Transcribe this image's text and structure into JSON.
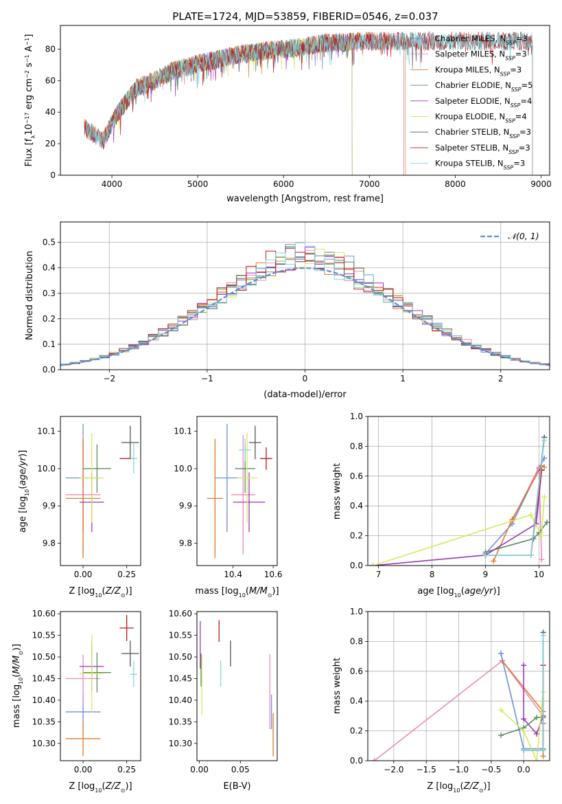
{
  "figure": {
    "title": "PLATE=1724, MJD=53859, FIBERID=0546, z=0.037"
  },
  "colors": {
    "Chabrier MILES": "#6a8fd8",
    "Salpeter MILES": "#e889bd",
    "Kroupa MILES": "#e07b28",
    "Chabrier ELODIE": "#5a8a5e",
    "Salpeter ELODIE": "#9a35b8",
    "Kroupa ELODIE": "#d7e85a",
    "Chabrier STELIB": "#555555",
    "Salpeter STELIB": "#c0151b",
    "Kroupa STELIB": "#7fd8df",
    "normal": "#5a8fd6"
  },
  "chart_data": [
    {
      "id": "spectrum",
      "type": "line",
      "title": "PLATE=1724, MJD=53859, FIBERID=0546, z=0.037",
      "xlabel": "wavelength [Angstrom, rest frame]",
      "ylabel": "Flux [f_λ 10^-17 erg cm^-2 s^-1 A^-1]",
      "xlim": [
        3400,
        9100
      ],
      "ylim": [
        0,
        95
      ],
      "xticks": [
        4000,
        5000,
        6000,
        7000,
        8000,
        9000
      ],
      "yticks": [
        0,
        20,
        40,
        60,
        80
      ],
      "grid": false,
      "legend_position": "right",
      "legend": [
        "Chabrier MILES, N_SSP=3",
        "Salpeter MILES, N_SSP=3",
        "Kroupa MILES, N_SSP=3",
        "Chabrier ELODIE, N_SSP=5",
        "Salpeter ELODIE, N_SSP=4",
        "Kroupa ELODIE, N_SSP=4",
        "Chabrier STELIB, N_SSP=3",
        "Salpeter STELIB, N_SSP=3",
        "Kroupa STELIB, N_SSP=3"
      ],
      "continuum": {
        "x": [
          3680,
          3900,
          4000,
          4100,
          4300,
          4500,
          4700,
          4900,
          5000,
          5200,
          5500,
          5800,
          6000,
          6300,
          6500,
          6700,
          6900,
          7100,
          7300,
          7400
        ],
        "y": [
          30,
          22,
          33,
          42,
          56,
          60,
          66,
          69,
          71,
          73,
          77,
          79,
          80,
          82,
          84,
          84,
          85,
          85,
          85,
          85
        ]
      },
      "model_ranges": [
        {
          "name": "Chabrier MILES",
          "x": [
            3680,
            7400
          ]
        },
        {
          "name": "Salpeter MILES",
          "x": [
            3680,
            7400
          ]
        },
        {
          "name": "Kroupa MILES",
          "x": [
            3680,
            7420
          ]
        },
        {
          "name": "Chabrier ELODIE",
          "x": [
            3900,
            6800
          ]
        },
        {
          "name": "Salpeter ELODIE",
          "x": [
            3900,
            6800
          ]
        },
        {
          "name": "Kroupa ELODIE",
          "x": [
            3900,
            6800
          ]
        },
        {
          "name": "Chabrier STELIB",
          "x": [
            3680,
            8900
          ]
        },
        {
          "name": "Salpeter STELIB",
          "x": [
            3680,
            8900
          ]
        },
        {
          "name": "Kroupa STELIB",
          "x": [
            3680,
            8900
          ]
        }
      ]
    },
    {
      "id": "residuals",
      "type": "histogram",
      "xlabel": "(data-model)/error",
      "ylabel": "Normed distribution",
      "xlim": [
        -2.5,
        2.5
      ],
      "ylim": [
        0,
        0.58
      ],
      "xticks": [
        -2,
        -1,
        0,
        1,
        2
      ],
      "yticks": [
        0,
        0.1,
        0.2,
        0.3,
        0.4,
        0.5
      ],
      "grid": true,
      "legend": "𝒩(0, 1)",
      "legend_position": "top-right",
      "bin_width": 0.1
    },
    {
      "id": "age_vs_Z",
      "type": "errorbar",
      "xlabel": "Z [log10(Z/Z☉)]",
      "ylabel": "age [log10(age/yr)]",
      "xlim": [
        -0.13,
        0.33
      ],
      "ylim": [
        9.74,
        10.14
      ],
      "xticks": [
        0.0,
        0.25
      ],
      "xticklabels": [
        "0.00",
        "0.25"
      ],
      "yticks": [
        9.8,
        9.9,
        10.0,
        10.1
      ],
      "grid": false,
      "points": [
        {
          "name": "Chabrier MILES",
          "x": 0.0,
          "xerr": 0.1,
          "y": 9.975,
          "yerr": 0.145
        },
        {
          "name": "Salpeter MILES",
          "x": 0.0,
          "xerr": 0.1,
          "y": 9.93,
          "yerr": 0.16
        },
        {
          "name": "Kroupa MILES",
          "x": 0.0,
          "xerr": 0.1,
          "y": 9.92,
          "yerr": 0.16
        },
        {
          "name": "Chabrier ELODIE",
          "x": 0.08,
          "xerr": 0.08,
          "y": 10.0,
          "yerr": 0.065
        },
        {
          "name": "Salpeter ELODIE",
          "x": 0.05,
          "xerr": 0.07,
          "y": 9.91,
          "yerr": 0.08
        },
        {
          "name": "Kroupa ELODIE",
          "x": 0.05,
          "xerr": 0.07,
          "y": 9.975,
          "yerr": 0.12
        },
        {
          "name": "Chabrier STELIB",
          "x": 0.27,
          "xerr": 0.05,
          "y": 10.07,
          "yerr": 0.045
        },
        {
          "name": "Salpeter STELIB",
          "x": 0.25,
          "xerr": 0.04,
          "y": 10.027,
          "yerr": 0.0
        },
        {
          "name": "Kroupa STELIB",
          "x": 0.29,
          "xerr": 0.02,
          "y": 10.027,
          "yerr": 0.04
        }
      ]
    },
    {
      "id": "age_vs_mass",
      "type": "errorbar",
      "xlabel": "mass [log10(M/M☉)]",
      "xlim": [
        10.22,
        10.62
      ],
      "ylim": [
        9.74,
        10.14
      ],
      "xticks": [
        10.4,
        10.6
      ],
      "xticklabels": [
        "10.4",
        "10.6"
      ],
      "yticks": [
        9.8,
        9.9,
        10.0,
        10.1
      ],
      "grid": false,
      "points": [
        {
          "name": "Chabrier MILES",
          "x": 10.37,
          "xerr": 0.06,
          "y": 9.975,
          "yerr": 0.145
        },
        {
          "name": "Salpeter MILES",
          "x": 10.45,
          "xerr": 0.06,
          "y": 9.93,
          "yerr": 0.16
        },
        {
          "name": "Kroupa MILES",
          "x": 10.31,
          "xerr": 0.04,
          "y": 9.92,
          "yerr": 0.16
        },
        {
          "name": "Chabrier ELODIE",
          "x": 10.46,
          "xerr": 0.05,
          "y": 10.0,
          "yerr": 0.065
        },
        {
          "name": "Salpeter ELODIE",
          "x": 10.48,
          "xerr": 0.08,
          "y": 9.91,
          "yerr": 0.08
        },
        {
          "name": "Kroupa ELODIE",
          "x": 10.47,
          "xerr": 0.05,
          "y": 9.975,
          "yerr": 0.12
        },
        {
          "name": "Chabrier STELIB",
          "x": 10.51,
          "xerr": 0.03,
          "y": 10.07,
          "yerr": 0.045
        },
        {
          "name": "Salpeter STELIB",
          "x": 10.565,
          "xerr": 0.03,
          "y": 10.027,
          "yerr": 0.03
        },
        {
          "name": "Kroupa STELIB",
          "x": 10.46,
          "xerr": 0.03,
          "y": 10.05,
          "yerr": 0.03
        }
      ]
    },
    {
      "id": "mass_weight_vs_age",
      "type": "line",
      "xlabel": "age [log10(age/yr)]",
      "ylabel": "mass weight",
      "xlim": [
        6.8,
        10.2
      ],
      "ylim": [
        0,
        1
      ],
      "xticks": [
        7,
        8,
        9,
        10
      ],
      "yticks": [
        0,
        0.2,
        0.4,
        0.6,
        0.8,
        1.0
      ],
      "grid": true,
      "series": [
        {
          "name": "Chabrier MILES",
          "x": [
            9.0,
            9.5,
            10.0,
            10.1
          ],
          "y": [
            0.08,
            0.28,
            0.65,
            0.72
          ]
        },
        {
          "name": "Salpeter MILES",
          "x": [
            9.5,
            10.0,
            10.05
          ],
          "y": [
            0.3,
            0.66,
            0.04
          ]
        },
        {
          "name": "Kroupa MILES",
          "x": [
            9.15,
            9.5,
            10.05,
            10.1
          ],
          "y": [
            0.03,
            0.31,
            0.67,
            0.66
          ]
        },
        {
          "name": "Chabrier ELODIE",
          "x": [
            9.0,
            9.9,
            10.0,
            10.15
          ],
          "y": [
            0.09,
            0.18,
            0.22,
            0.29
          ]
        },
        {
          "name": "Salpeter ELODIE",
          "x": [
            6.9,
            9.0,
            9.95,
            10.05
          ],
          "y": [
            0.0,
            0.07,
            0.28,
            0.64
          ]
        },
        {
          "name": "Kroupa ELODIE",
          "x": [
            6.9,
            9.85,
            10.05,
            10.1
          ],
          "y": [
            0.0,
            0.34,
            0.2,
            0.46
          ]
        },
        {
          "name": "Chabrier STELIB",
          "x": [
            9.0,
            9.85,
            10.1
          ],
          "y": [
            0.07,
            0.07,
            0.86
          ]
        },
        {
          "name": "Salpeter STELIB",
          "x": [
            9.0,
            9.85,
            10.05
          ],
          "y": [
            0.07,
            0.07,
            0.64
          ]
        },
        {
          "name": "Kroupa STELIB",
          "x": [
            9.0,
            9.85,
            10.1
          ],
          "y": [
            0.07,
            0.07,
            0.84
          ]
        }
      ]
    },
    {
      "id": "mass_vs_Z",
      "type": "errorbar",
      "xlabel": "Z [log10(Z/Z☉)]",
      "ylabel": "mass [log10(M/M☉)]",
      "xlim": [
        -0.13,
        0.33
      ],
      "ylim": [
        10.26,
        10.605
      ],
      "xticks": [
        0.0,
        0.25
      ],
      "xticklabels": [
        "0.00",
        "0.25"
      ],
      "yticks": [
        10.3,
        10.35,
        10.4,
        10.45,
        10.5,
        10.55,
        10.6
      ],
      "grid": false,
      "points": [
        {
          "name": "Chabrier MILES",
          "x": 0.0,
          "xerr": 0.1,
          "y": 10.373,
          "yerr": 0.04
        },
        {
          "name": "Salpeter MILES",
          "x": 0.0,
          "xerr": 0.1,
          "y": 10.45,
          "yerr": 0.055
        },
        {
          "name": "Kroupa MILES",
          "x": 0.0,
          "xerr": 0.1,
          "y": 10.311,
          "yerr": 0.04
        },
        {
          "name": "Chabrier ELODIE",
          "x": 0.08,
          "xerr": 0.08,
          "y": 10.464,
          "yerr": 0.046
        },
        {
          "name": "Salpeter ELODIE",
          "x": 0.05,
          "xerr": 0.07,
          "y": 10.478,
          "yerr": 0.055
        },
        {
          "name": "Kroupa ELODIE",
          "x": 0.05,
          "xerr": 0.07,
          "y": 10.462,
          "yerr": 0.09
        },
        {
          "name": "Chabrier STELIB",
          "x": 0.27,
          "xerr": 0.05,
          "y": 10.508,
          "yerr": 0.03
        },
        {
          "name": "Salpeter STELIB",
          "x": 0.25,
          "xerr": 0.04,
          "y": 10.567,
          "yerr": 0.03
        },
        {
          "name": "Kroupa STELIB",
          "x": 0.29,
          "xerr": 0.02,
          "y": 10.46,
          "yerr": 0.03
        }
      ]
    },
    {
      "id": "mass_vs_ebv",
      "type": "errorbar",
      "xlabel": "E(B-V)",
      "xlim": [
        -0.003,
        0.095
      ],
      "ylim": [
        10.26,
        10.605
      ],
      "xticks": [
        0.0,
        0.05
      ],
      "xticklabels": [
        "0.00",
        "0.05"
      ],
      "yticks": [
        10.3,
        10.35,
        10.4,
        10.45,
        10.5,
        10.55,
        10.6
      ],
      "grid": false,
      "points": [
        {
          "name": "Chabrier MILES",
          "x": 0.088,
          "y": 10.373,
          "yerr": 0.04
        },
        {
          "name": "Salpeter MILES",
          "x": 0.086,
          "y": 10.42,
          "yerr": 0.087
        },
        {
          "name": "Kroupa MILES",
          "x": 0.09,
          "y": 10.32,
          "yerr": 0.05
        },
        {
          "name": "Chabrier ELODIE",
          "x": 0.002,
          "y": 10.47,
          "yerr": 0.038
        },
        {
          "name": "Salpeter ELODIE",
          "x": 0.001,
          "y": 10.528,
          "yerr": 0.055
        },
        {
          "name": "Kroupa ELODIE",
          "x": 0.003,
          "y": 10.435,
          "yerr": 0.07
        },
        {
          "name": "Chabrier STELIB",
          "x": 0.038,
          "y": 10.508,
          "yerr": 0.03
        },
        {
          "name": "Salpeter STELIB",
          "x": 0.024,
          "y": 10.56,
          "yerr": 0.025
        },
        {
          "name": "Kroupa STELIB",
          "x": 0.026,
          "y": 10.462,
          "yerr": 0.03
        }
      ]
    },
    {
      "id": "mass_weight_vs_Z",
      "type": "line",
      "xlabel": "Z [log10(Z/Z☉)]",
      "ylabel": "mass weight",
      "xlim": [
        -2.4,
        0.4
      ],
      "ylim": [
        0,
        1
      ],
      "xticks": [
        -2.0,
        -1.5,
        -1.0,
        -0.5,
        0.0
      ],
      "xticklabels": [
        "−2.0",
        "−1.5",
        "−1.0",
        "−0.5",
        "0.0"
      ],
      "yticks": [
        0,
        0.2,
        0.4,
        0.6,
        0.8,
        1.0
      ],
      "grid": true,
      "series": [
        {
          "name": "Salpeter MILES",
          "x": [
            -2.3,
            -0.33,
            0.3
          ],
          "y": [
            0.0,
            0.67,
            0.3
          ]
        },
        {
          "name": "Kroupa MILES",
          "x": [
            -0.33,
            0.3,
            0.3
          ],
          "y": [
            0.67,
            0.33,
            0.03
          ]
        },
        {
          "name": "Chabrier MILES",
          "x": [
            -0.35,
            0.0,
            0.3,
            0.3
          ],
          "y": [
            0.72,
            0.08,
            0.08,
            0.25
          ]
        },
        {
          "name": "Salpeter ELODIE",
          "x": [
            0.0,
            0.0,
            0.2,
            0.3
          ],
          "y": [
            0.64,
            0.28,
            0.18,
            0.3
          ]
        },
        {
          "name": "Chabrier ELODIE",
          "x": [
            -0.35,
            0.0,
            0.2,
            0.3
          ],
          "y": [
            0.17,
            0.22,
            0.29,
            0.29
          ]
        },
        {
          "name": "Kroupa ELODIE",
          "x": [
            -0.35,
            0.0,
            0.2,
            0.3
          ],
          "y": [
            0.34,
            0.2,
            0.0,
            0.46
          ]
        },
        {
          "name": "Chabrier STELIB",
          "x": [
            0.0,
            0.3,
            0.3
          ],
          "y": [
            0.07,
            0.07,
            0.86
          ]
        },
        {
          "name": "Salpeter STELIB",
          "x": [
            0.0,
            0.3,
            0.3
          ],
          "y": [
            0.07,
            0.07,
            0.64
          ]
        },
        {
          "name": "Kroupa STELIB",
          "x": [
            0.0,
            0.3,
            0.3
          ],
          "y": [
            0.07,
            0.07,
            0.84
          ]
        }
      ]
    }
  ]
}
